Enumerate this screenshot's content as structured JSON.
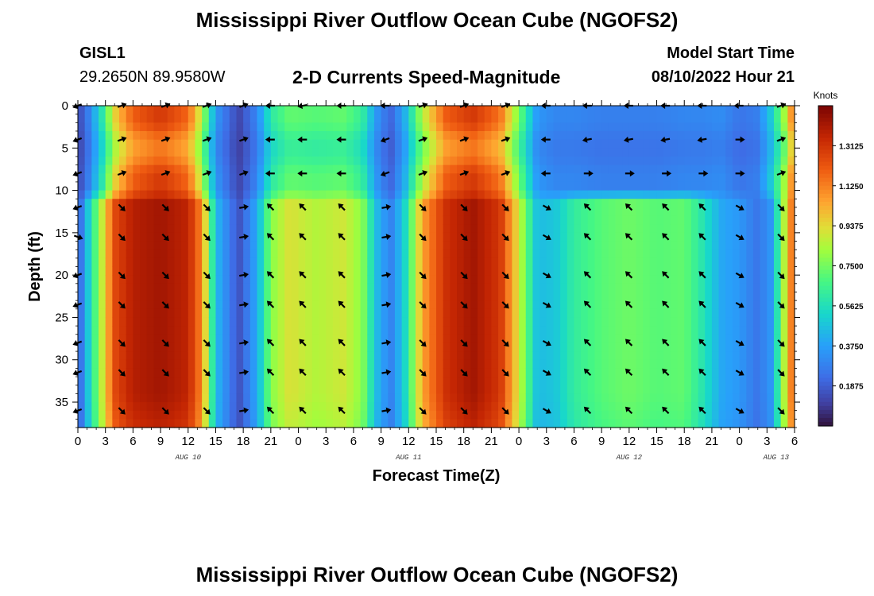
{
  "header": {
    "title": "Mississippi River Outflow Ocean Cube (NGOFS2)",
    "station_name": "GISL1",
    "station_coords": "29.2650N  89.9580W",
    "subtitle": "2-D Currents Speed-Magnitude",
    "model_start_label": "Model Start Time",
    "model_start_value": "08/10/2022 Hour 21"
  },
  "footer": {
    "title": "Mississippi River Outflow Ocean Cube (NGOFS2)"
  },
  "chart_data": {
    "type": "heatmap",
    "title": "2-D Currents Speed-Magnitude",
    "xlabel": "Forecast Time(Z)",
    "ylabel": "Depth (ft)",
    "xlim": [
      0,
      78
    ],
    "ylim": [
      38,
      0
    ],
    "x_ticks": [
      0,
      3,
      6,
      9,
      12,
      15,
      18,
      21,
      24,
      27,
      30,
      33,
      36,
      39,
      42,
      45,
      48,
      51,
      54,
      57,
      60,
      63,
      66,
      69,
      72,
      75,
      78
    ],
    "x_tick_labels": [
      "0",
      "3",
      "6",
      "9",
      "12",
      "15",
      "18",
      "21",
      "0",
      "3",
      "6",
      "9",
      "12",
      "15",
      "18",
      "21",
      "0",
      "3",
      "6",
      "9",
      "12",
      "15",
      "18",
      "21",
      "0",
      "3",
      "6"
    ],
    "y_ticks": [
      0,
      5,
      10,
      15,
      20,
      25,
      30,
      35
    ],
    "y_tick_labels": [
      "0",
      "5",
      "10",
      "15",
      "20",
      "25",
      "30",
      "35"
    ],
    "day_labels": [
      {
        "x": 12,
        "text": "AUG 10"
      },
      {
        "x": 36,
        "text": "AUG 11"
      },
      {
        "x": 60,
        "text": "AUG 12"
      },
      {
        "x": 76,
        "text": "AUG 13"
      }
    ],
    "colorbar": {
      "label": "Knots",
      "min": 0.0,
      "max": 1.5,
      "ticks": [
        0.1875,
        0.375,
        0.5625,
        0.75,
        0.9375,
        1.125,
        1.3125
      ],
      "tick_labels": [
        "0.1875",
        "0.3750",
        "0.5625",
        "0.7500",
        "0.9375",
        "1.1250",
        "1.3125"
      ]
    },
    "surface_layer_depth_ft": 10,
    "layer_transition_ft": 11.5,
    "speed_profile_knots": [
      {
        "t": 0,
        "surface": 0.12,
        "deep": 0.15
      },
      {
        "t": 1,
        "surface": 0.25,
        "deep": 0.45
      },
      {
        "t": 2.5,
        "surface": 0.55,
        "deep": 0.85
      },
      {
        "t": 4,
        "surface": 0.95,
        "deep": 1.25
      },
      {
        "t": 6,
        "surface": 1.2,
        "deep": 1.38
      },
      {
        "t": 9,
        "surface": 1.3,
        "deep": 1.42
      },
      {
        "t": 12,
        "surface": 1.18,
        "deep": 1.36
      },
      {
        "t": 13.5,
        "surface": 0.85,
        "deep": 1.1
      },
      {
        "t": 15,
        "surface": 0.35,
        "deep": 0.45
      },
      {
        "t": 17.5,
        "surface": 0.12,
        "deep": 0.15
      },
      {
        "t": 19.5,
        "surface": 0.3,
        "deep": 0.4
      },
      {
        "t": 21,
        "surface": 0.6,
        "deep": 0.78
      },
      {
        "t": 23,
        "surface": 0.72,
        "deep": 0.92
      },
      {
        "t": 26,
        "surface": 0.7,
        "deep": 0.85
      },
      {
        "t": 29,
        "surface": 0.72,
        "deep": 0.9
      },
      {
        "t": 31,
        "surface": 0.62,
        "deep": 0.78
      },
      {
        "t": 32.5,
        "surface": 0.35,
        "deep": 0.45
      },
      {
        "t": 34,
        "surface": 0.2,
        "deep": 0.28
      },
      {
        "t": 35.5,
        "surface": 0.4,
        "deep": 0.5
      },
      {
        "t": 37.5,
        "surface": 0.85,
        "deep": 1.05
      },
      {
        "t": 40,
        "surface": 1.2,
        "deep": 1.32
      },
      {
        "t": 43,
        "surface": 1.3,
        "deep": 1.42
      },
      {
        "t": 46,
        "surface": 1.15,
        "deep": 1.3
      },
      {
        "t": 48,
        "surface": 0.75,
        "deep": 0.9
      },
      {
        "t": 50,
        "surface": 0.35,
        "deep": 0.45
      },
      {
        "t": 52,
        "surface": 0.3,
        "deep": 0.48
      },
      {
        "t": 54,
        "surface": 0.3,
        "deep": 0.62
      },
      {
        "t": 57,
        "surface": 0.28,
        "deep": 0.7
      },
      {
        "t": 60,
        "surface": 0.28,
        "deep": 0.74
      },
      {
        "t": 63,
        "surface": 0.28,
        "deep": 0.7
      },
      {
        "t": 66,
        "surface": 0.3,
        "deep": 0.72
      },
      {
        "t": 68,
        "surface": 0.3,
        "deep": 0.58
      },
      {
        "t": 70,
        "surface": 0.32,
        "deep": 0.4
      },
      {
        "t": 72,
        "surface": 0.25,
        "deep": 0.35
      },
      {
        "t": 74,
        "surface": 0.28,
        "deep": 0.25
      },
      {
        "t": 75.5,
        "surface": 0.5,
        "deep": 0.35
      },
      {
        "t": 77,
        "surface": 0.85,
        "deep": 0.9
      },
      {
        "t": 78,
        "surface": 1.2,
        "deep": 1.25
      }
    ],
    "vectors": {
      "depths_ft": [
        0,
        4,
        8,
        12,
        15.5,
        20,
        23.5,
        28,
        31.5,
        36
      ],
      "times_h": [
        0,
        4.75,
        9.5,
        14,
        18,
        21,
        24.5,
        28.75,
        33.5,
        37.5,
        42,
        46.5,
        51,
        55.5,
        60,
        64,
        68,
        72,
        76.5
      ],
      "directions_deg": {
        "0": [
          200,
          200,
          200,
          200,
          340,
          200,
          200,
          200,
          200,
          200
        ],
        "4.75": [
          20,
          20,
          20,
          315,
          315,
          315,
          315,
          315,
          315,
          315
        ],
        "9.5": [
          20,
          20,
          20,
          315,
          315,
          315,
          315,
          315,
          315,
          315
        ],
        "14": [
          20,
          20,
          20,
          315,
          315,
          315,
          315,
          315,
          315,
          315
        ],
        "18": [
          20,
          20,
          20,
          10,
          10,
          10,
          10,
          10,
          10,
          10
        ],
        "21": [
          180,
          180,
          180,
          135,
          135,
          135,
          135,
          135,
          135,
          135
        ],
        "24.5": [
          190,
          180,
          180,
          135,
          135,
          135,
          135,
          135,
          135,
          135
        ],
        "28.75": [
          180,
          180,
          180,
          135,
          135,
          135,
          135,
          135,
          135,
          135
        ],
        "33.5": [
          180,
          200,
          200,
          10,
          10,
          10,
          10,
          10,
          10,
          10
        ],
        "37.5": [
          20,
          20,
          20,
          315,
          315,
          315,
          315,
          315,
          315,
          315
        ],
        "42": [
          20,
          20,
          20,
          315,
          315,
          315,
          315,
          315,
          315,
          315
        ],
        "46.5": [
          20,
          20,
          20,
          315,
          315,
          315,
          315,
          315,
          315,
          315
        ],
        "51": [
          180,
          180,
          180,
          330,
          330,
          330,
          330,
          330,
          330,
          330
        ],
        "55.5": [
          180,
          190,
          0,
          135,
          135,
          135,
          135,
          135,
          135,
          135
        ],
        "60": [
          180,
          190,
          0,
          135,
          135,
          135,
          135,
          135,
          135,
          135
        ],
        "64": [
          180,
          190,
          0,
          135,
          135,
          135,
          135,
          135,
          135,
          135
        ],
        "68": [
          180,
          190,
          0,
          135,
          135,
          135,
          135,
          135,
          135,
          135
        ],
        "72": [
          180,
          0,
          0,
          330,
          330,
          330,
          330,
          330,
          330,
          330
        ],
        "76.5": [
          20,
          20,
          20,
          315,
          315,
          315,
          315,
          315,
          315,
          315
        ]
      }
    }
  }
}
